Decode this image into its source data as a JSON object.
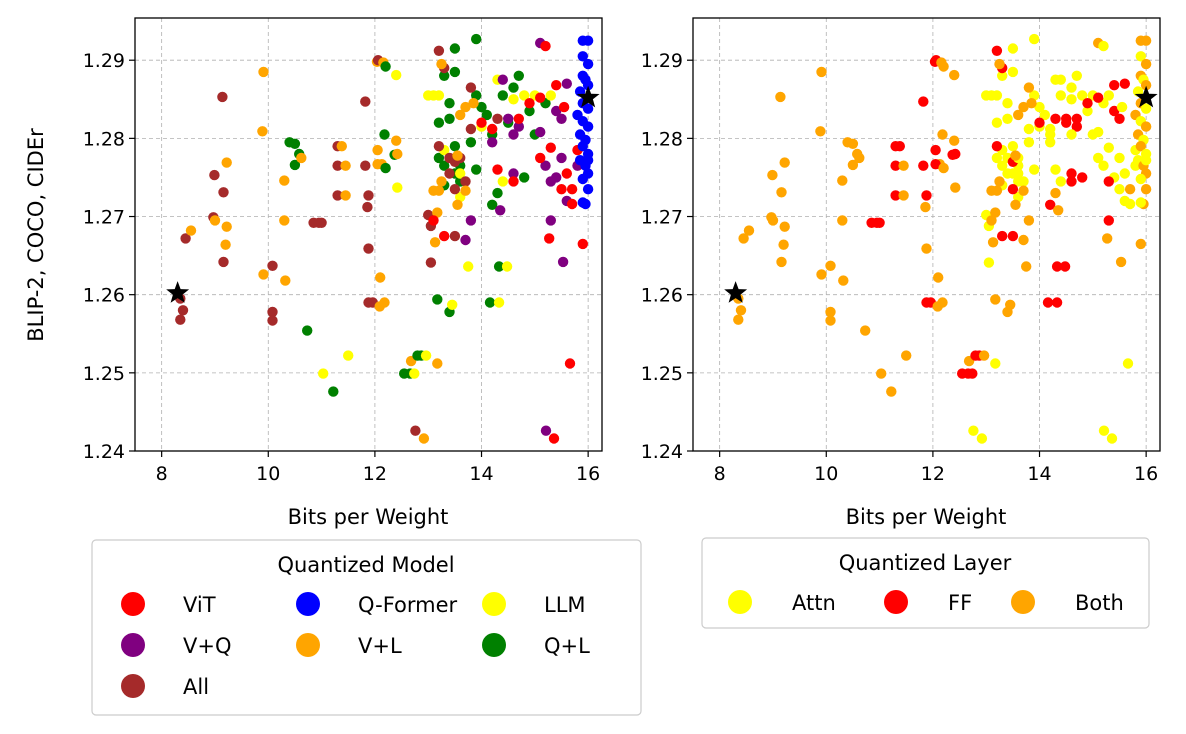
{
  "chart_data": {
    "type": "scatter",
    "ylabel": "BLIP-2, COCO, CIDEr",
    "xlabel": "Bits per Weight",
    "xlim": [
      7.5,
      16.26
    ],
    "ylim": [
      1.24,
      1.2954
    ],
    "xticks": [
      8,
      10,
      12,
      14,
      16
    ],
    "yticks": [
      1.24,
      1.25,
      1.26,
      1.27,
      1.28,
      1.29
    ],
    "ytick_labels": [
      "1.24",
      "1.25",
      "1.26",
      "1.27",
      "1.28",
      "1.29"
    ],
    "grid": true,
    "models": [
      {
        "name": "ViT",
        "color": "#ff0000"
      },
      {
        "name": "V+Q",
        "color": "#800080"
      },
      {
        "name": "All",
        "color": "#a52a2a"
      },
      {
        "name": "Q-Former",
        "color": "#0000ff"
      },
      {
        "name": "V+L",
        "color": "#ffa500"
      },
      {
        "name": "LLM",
        "color": "#ffff00"
      },
      {
        "name": "Q+L",
        "color": "#008000"
      }
    ],
    "layers": [
      {
        "name": "Attn",
        "color": "#ffff00"
      },
      {
        "name": "FF",
        "color": "#ff0000"
      },
      {
        "name": "Both",
        "color": "#ffa500"
      }
    ],
    "legends": [
      {
        "title": "Quantized Model",
        "placement": "below-left",
        "colorby": "model"
      },
      {
        "title": "Quantized Layer",
        "placement": "below-right",
        "colorby": "layer"
      }
    ],
    "reference_points": [
      [
        8.3,
        1.2602
      ],
      [
        16.0,
        1.2852
      ]
    ],
    "point_fields": [
      "bits",
      "cider",
      "model_index",
      "layer_index"
    ],
    "points": [
      [
        8.35,
        1.2595,
        2,
        2
      ],
      [
        8.4,
        1.258,
        2,
        2
      ],
      [
        8.35,
        1.2568,
        2,
        2
      ],
      [
        8.45,
        1.2672,
        2,
        2
      ],
      [
        8.55,
        1.2682,
        4,
        2
      ],
      [
        9.14,
        1.2853,
        2,
        2
      ],
      [
        9.91,
        1.2885,
        4,
        2
      ],
      [
        9.89,
        1.2809,
        4,
        2
      ],
      [
        8.99,
        1.2753,
        2,
        2
      ],
      [
        9.22,
        1.2769,
        4,
        2
      ],
      [
        9.16,
        1.2731,
        2,
        2
      ],
      [
        8.97,
        1.2699,
        2,
        2
      ],
      [
        9.0,
        1.2695,
        4,
        2
      ],
      [
        9.22,
        1.2687,
        4,
        2
      ],
      [
        9.2,
        1.2664,
        4,
        2
      ],
      [
        9.16,
        1.2642,
        2,
        2
      ],
      [
        9.91,
        1.2626,
        4,
        2
      ],
      [
        10.08,
        1.2637,
        2,
        2
      ],
      [
        10.08,
        1.2578,
        2,
        2
      ],
      [
        10.08,
        1.2567,
        2,
        2
      ],
      [
        10.32,
        1.2618,
        4,
        2
      ],
      [
        10.3,
        1.2746,
        4,
        2
      ],
      [
        10.3,
        1.2695,
        4,
        2
      ],
      [
        10.4,
        1.2795,
        6,
        2
      ],
      [
        10.5,
        1.2793,
        6,
        2
      ],
      [
        10.5,
        1.2766,
        6,
        2
      ],
      [
        10.58,
        1.278,
        6,
        2
      ],
      [
        10.62,
        1.2775,
        4,
        2
      ],
      [
        10.73,
        1.2554,
        6,
        2
      ],
      [
        10.85,
        1.2692,
        2,
        1
      ],
      [
        10.95,
        1.2692,
        2,
        1
      ],
      [
        11.0,
        1.2692,
        2,
        1
      ],
      [
        11.03,
        1.2499,
        5,
        2
      ],
      [
        11.22,
        1.2476,
        6,
        2
      ],
      [
        11.5,
        1.2522,
        5,
        2
      ],
      [
        11.3,
        1.279,
        2,
        1
      ],
      [
        11.3,
        1.2765,
        2,
        1
      ],
      [
        11.3,
        1.2727,
        2,
        1
      ],
      [
        11.38,
        1.279,
        4,
        1
      ],
      [
        11.45,
        1.2765,
        4,
        2
      ],
      [
        11.45,
        1.2727,
        4,
        2
      ],
      [
        11.82,
        1.2847,
        2,
        1
      ],
      [
        11.82,
        1.2765,
        2,
        1
      ],
      [
        11.88,
        1.2727,
        2,
        1
      ],
      [
        11.86,
        1.2712,
        2,
        2
      ],
      [
        11.88,
        1.2659,
        2,
        2
      ],
      [
        11.88,
        1.259,
        2,
        1
      ],
      [
        11.96,
        1.259,
        2,
        1
      ],
      [
        12.04,
        1.2898,
        4,
        1
      ],
      [
        12.06,
        1.29,
        2,
        1
      ],
      [
        12.16,
        1.2897,
        4,
        2
      ],
      [
        12.05,
        1.2785,
        4,
        1
      ],
      [
        12.13,
        1.2767,
        4,
        2
      ],
      [
        12.05,
        1.2767,
        4,
        1
      ],
      [
        12.1,
        1.2622,
        4,
        2
      ],
      [
        12.09,
        1.2585,
        4,
        2
      ],
      [
        12.18,
        1.259,
        4,
        2
      ],
      [
        12.18,
        1.2805,
        6,
        2
      ],
      [
        12.2,
        1.2762,
        6,
        2
      ],
      [
        12.37,
        1.2779,
        6,
        1
      ],
      [
        12.2,
        1.2892,
        6,
        2
      ],
      [
        12.4,
        1.2881,
        5,
        2
      ],
      [
        12.42,
        1.2737,
        5,
        2
      ],
      [
        12.4,
        1.2797,
        4,
        2
      ],
      [
        12.42,
        1.278,
        4,
        1
      ],
      [
        12.68,
        1.2515,
        4,
        2
      ],
      [
        12.8,
        1.2522,
        6,
        1
      ],
      [
        12.87,
        1.2522,
        6,
        1
      ],
      [
        12.96,
        1.2522,
        5,
        2
      ],
      [
        12.55,
        1.2499,
        6,
        1
      ],
      [
        12.66,
        1.2499,
        6,
        1
      ],
      [
        12.74,
        1.2499,
        5,
        1
      ],
      [
        12.76,
        1.2426,
        2,
        0
      ],
      [
        12.92,
        1.2416,
        4,
        0
      ],
      [
        13.0,
        1.2702,
        2,
        0
      ],
      [
        13.05,
        1.2688,
        2,
        0
      ],
      [
        13.05,
        1.2641,
        2,
        0
      ],
      [
        13.1,
        1.2733,
        4,
        2
      ],
      [
        13.17,
        1.2705,
        4,
        2
      ],
      [
        13.13,
        1.2667,
        4,
        2
      ],
      [
        13.17,
        1.2512,
        4,
        0
      ],
      [
        13.17,
        1.2594,
        6,
        2
      ],
      [
        13.4,
        1.2578,
        6,
        2
      ],
      [
        13.45,
        1.2587,
        5,
        2
      ],
      [
        14.33,
        1.2636,
        6,
        1
      ],
      [
        14.48,
        1.2636,
        5,
        1
      ],
      [
        14.16,
        1.259,
        6,
        1
      ],
      [
        14.33,
        1.259,
        5,
        1
      ],
      [
        13.75,
        1.2636,
        5,
        2
      ],
      [
        15.21,
        1.2426,
        1,
        0
      ],
      [
        15.36,
        1.2416,
        0,
        0
      ],
      [
        15.66,
        1.2512,
        0,
        0
      ],
      [
        15.53,
        1.2642,
        1,
        2
      ],
      [
        15.27,
        1.2672,
        0,
        2
      ],
      [
        13.5,
        1.2915,
        6,
        0
      ],
      [
        13.9,
        1.2927,
        6,
        0
      ],
      [
        13.3,
        1.288,
        6,
        0
      ],
      [
        13.5,
        1.2885,
        6,
        0
      ],
      [
        13.2,
        1.282,
        6,
        0
      ],
      [
        13.4,
        1.2825,
        6,
        0
      ],
      [
        13.2,
        1.2775,
        6,
        0
      ],
      [
        13.3,
        1.2765,
        6,
        0
      ],
      [
        13.5,
        1.2755,
        6,
        0
      ],
      [
        13.3,
        1.274,
        6,
        0
      ],
      [
        13.6,
        1.2745,
        6,
        0
      ],
      [
        13.5,
        1.279,
        6,
        0
      ],
      [
        13.8,
        1.2795,
        6,
        0
      ],
      [
        14.0,
        1.284,
        6,
        0
      ],
      [
        14.1,
        1.283,
        6,
        0
      ],
      [
        14.2,
        1.2805,
        6,
        0
      ],
      [
        14.4,
        1.2855,
        6,
        0
      ],
      [
        14.5,
        1.282,
        6,
        1
      ],
      [
        14.7,
        1.288,
        6,
        0
      ],
      [
        14.9,
        1.2835,
        6,
        0
      ],
      [
        15.0,
        1.2805,
        6,
        0
      ],
      [
        15.2,
        1.2845,
        6,
        0
      ],
      [
        14.6,
        1.2865,
        6,
        0
      ],
      [
        13.9,
        1.2855,
        6,
        0
      ],
      [
        14.3,
        1.273,
        6,
        2
      ],
      [
        14.8,
        1.275,
        6,
        1
      ],
      [
        13.6,
        1.2765,
        6,
        0
      ],
      [
        13.9,
        1.276,
        6,
        0
      ],
      [
        14.2,
        1.2715,
        6,
        1
      ],
      [
        13.4,
        1.2845,
        6,
        0
      ],
      [
        13.0,
        1.2855,
        5,
        0
      ],
      [
        13.2,
        1.2855,
        5,
        0
      ],
      [
        13.55,
        1.2775,
        5,
        0
      ],
      [
        13.6,
        1.2755,
        5,
        0
      ],
      [
        14.3,
        1.2875,
        5,
        0
      ],
      [
        14.0,
        1.2815,
        5,
        0
      ],
      [
        14.6,
        1.285,
        5,
        0
      ],
      [
        14.8,
        1.2855,
        5,
        0
      ],
      [
        15.0,
        1.2855,
        5,
        0
      ],
      [
        13.6,
        1.2725,
        5,
        0
      ],
      [
        14.4,
        1.2745,
        5,
        0
      ],
      [
        15.3,
        1.2855,
        5,
        0
      ],
      [
        13.3,
        1.2785,
        5,
        0
      ],
      [
        13.1,
        1.2855,
        5,
        0
      ],
      [
        13.2,
        1.2912,
        2,
        1
      ],
      [
        13.3,
        1.289,
        2,
        1
      ],
      [
        13.2,
        1.279,
        2,
        1
      ],
      [
        13.4,
        1.2775,
        2,
        0
      ],
      [
        13.5,
        1.277,
        2,
        1
      ],
      [
        13.6,
        1.2775,
        2,
        0
      ],
      [
        13.4,
        1.2755,
        2,
        0
      ],
      [
        13.5,
        1.2735,
        2,
        1
      ],
      [
        13.7,
        1.2745,
        2,
        0
      ],
      [
        13.8,
        1.2865,
        2,
        2
      ],
      [
        13.8,
        1.2812,
        2,
        0
      ],
      [
        14.3,
        1.2825,
        2,
        1
      ],
      [
        13.3,
        1.2675,
        0,
        1
      ],
      [
        13.5,
        1.2675,
        2,
        1
      ],
      [
        13.25,
        1.2895,
        4,
        2
      ],
      [
        13.6,
        1.283,
        4,
        2
      ],
      [
        13.7,
        1.284,
        4,
        2
      ],
      [
        13.55,
        1.2778,
        4,
        2
      ],
      [
        13.2,
        1.2733,
        4,
        2
      ],
      [
        13.7,
        1.2733,
        4,
        2
      ],
      [
        13.55,
        1.2715,
        4,
        2
      ],
      [
        13.25,
        1.2745,
        4,
        2
      ],
      [
        13.85,
        1.2845,
        4,
        2
      ],
      [
        15.1,
        1.2922,
        1,
        2
      ],
      [
        14.4,
        1.2875,
        1,
        0
      ],
      [
        14.5,
        1.2825,
        1,
        1
      ],
      [
        14.7,
        1.2815,
        1,
        1
      ],
      [
        14.2,
        1.2795,
        1,
        0
      ],
      [
        14.6,
        1.2805,
        1,
        0
      ],
      [
        15.4,
        1.2835,
        1,
        1
      ],
      [
        15.5,
        1.2825,
        1,
        1
      ],
      [
        15.6,
        1.287,
        1,
        1
      ],
      [
        15.2,
        1.2765,
        1,
        0
      ],
      [
        15.4,
        1.275,
        1,
        0
      ],
      [
        15.3,
        1.2745,
        1,
        1
      ],
      [
        15.5,
        1.2775,
        1,
        0
      ],
      [
        15.6,
        1.272,
        1,
        0
      ],
      [
        15.3,
        1.2695,
        1,
        1
      ],
      [
        13.7,
        1.267,
        1,
        2
      ],
      [
        13.8,
        1.2695,
        1,
        2
      ],
      [
        14.6,
        1.2755,
        1,
        1
      ],
      [
        14.35,
        1.2708,
        1,
        2
      ],
      [
        15.8,
        1.2765,
        1,
        0
      ],
      [
        15.1,
        1.2808,
        1,
        0
      ],
      [
        15.2,
        1.2918,
        0,
        0
      ],
      [
        15.4,
        1.2868,
        0,
        1
      ],
      [
        15.55,
        1.284,
        0,
        0
      ],
      [
        14.9,
        1.2845,
        0,
        1
      ],
      [
        15.1,
        1.2852,
        0,
        1
      ],
      [
        14.7,
        1.2825,
        0,
        1
      ],
      [
        14.0,
        1.282,
        0,
        1
      ],
      [
        14.2,
        1.2812,
        0,
        0
      ],
      [
        15.3,
        1.2788,
        0,
        0
      ],
      [
        15.6,
        1.2755,
        0,
        0
      ],
      [
        15.1,
        1.2775,
        0,
        0
      ],
      [
        15.5,
        1.2735,
        0,
        0
      ],
      [
        15.7,
        1.2716,
        0,
        0
      ],
      [
        15.7,
        1.2735,
        0,
        2
      ],
      [
        15.8,
        1.2785,
        0,
        0
      ],
      [
        14.6,
        1.2745,
        0,
        1
      ],
      [
        14.3,
        1.276,
        0,
        0
      ],
      [
        15.9,
        1.2665,
        0,
        2
      ],
      [
        13.1,
        1.2695,
        0,
        2
      ],
      [
        15.9,
        1.2925,
        3,
        2
      ],
      [
        16.0,
        1.2925,
        3,
        2
      ],
      [
        15.9,
        1.2905,
        3,
        0
      ],
      [
        16.0,
        1.2895,
        3,
        2
      ],
      [
        15.9,
        1.288,
        3,
        2
      ],
      [
        15.95,
        1.2875,
        3,
        0
      ],
      [
        16.0,
        1.2868,
        3,
        2
      ],
      [
        15.85,
        1.286,
        3,
        0
      ],
      [
        15.9,
        1.2845,
        3,
        2
      ],
      [
        16.0,
        1.2838,
        3,
        0
      ],
      [
        15.8,
        1.283,
        3,
        2
      ],
      [
        15.9,
        1.2822,
        3,
        0
      ],
      [
        16.0,
        1.2815,
        3,
        2
      ],
      [
        15.85,
        1.2805,
        3,
        2
      ],
      [
        15.95,
        1.2798,
        3,
        0
      ],
      [
        15.9,
        1.279,
        3,
        2
      ],
      [
        16.0,
        1.278,
        3,
        0
      ],
      [
        15.85,
        1.2772,
        3,
        0
      ],
      [
        15.95,
        1.2765,
        3,
        2
      ],
      [
        16.0,
        1.2755,
        3,
        2
      ],
      [
        15.9,
        1.2748,
        3,
        0
      ],
      [
        16.0,
        1.2735,
        3,
        2
      ],
      [
        15.95,
        1.2716,
        3,
        2
      ],
      [
        15.9,
        1.2718,
        3,
        0
      ],
      [
        16.0,
        1.2772,
        3,
        0
      ]
    ]
  }
}
